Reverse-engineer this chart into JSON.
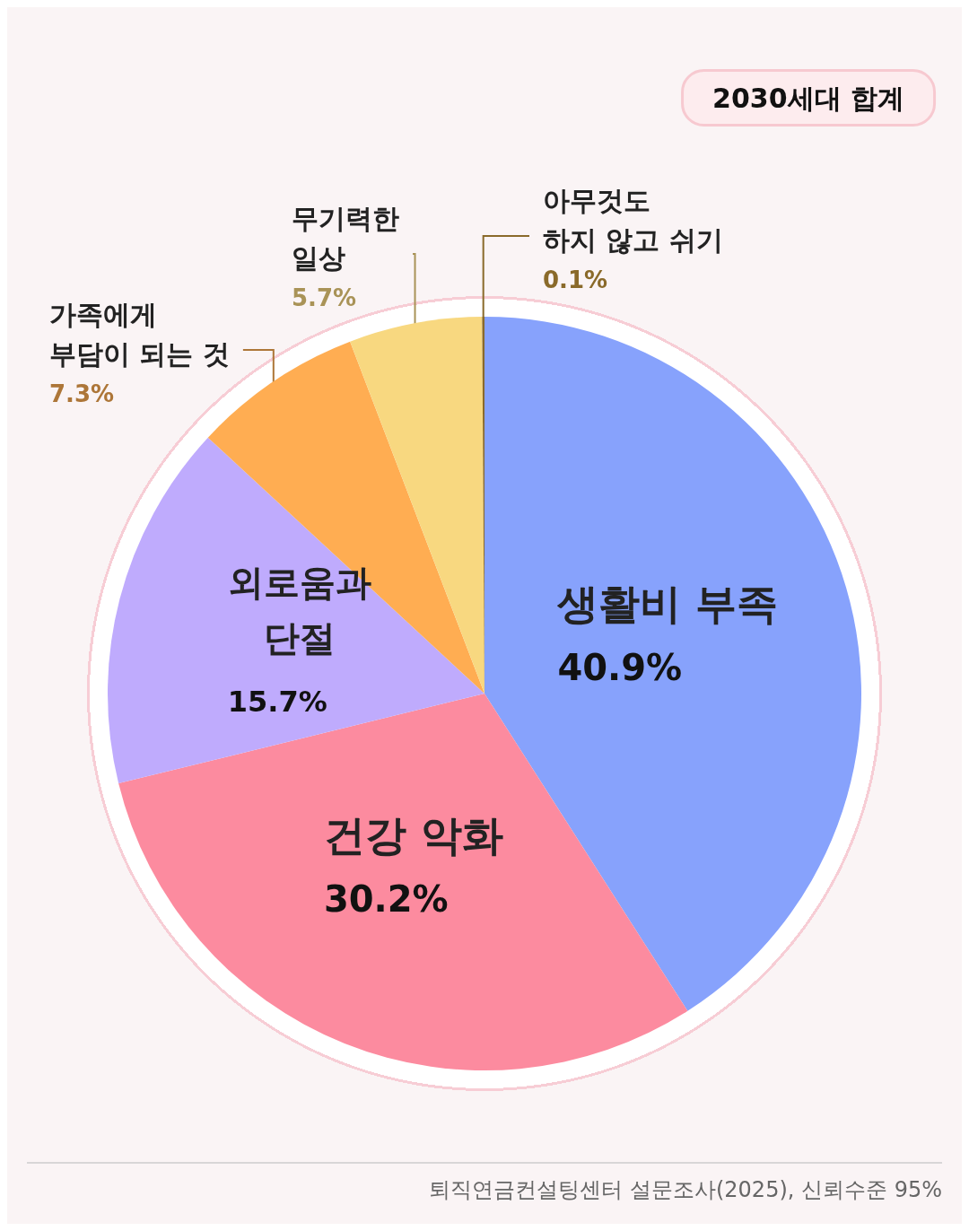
{
  "chart_data": {
    "type": "pie",
    "title": "2030세대 합계",
    "categories": [
      "생활비 부족",
      "건강 악화",
      "외로움과 단절",
      "가족에게 부담이 되는 것",
      "무기력한 일상",
      "아무것도 하지 않고 쉬기"
    ],
    "values": [
      40.9,
      30.2,
      15.7,
      7.3,
      5.7,
      0.1
    ],
    "value_labels": [
      "40.9%",
      "30.2%",
      "15.7%",
      "7.3%",
      "5.7%",
      "0.1%"
    ],
    "colors": [
      "#87a2fc",
      "#fc8b9f",
      "#bfabfd",
      "#ffad52",
      "#f8d880",
      "#8a6a2a"
    ],
    "legend": false,
    "annotations": [
      "퇴직연금컨설팅센터 설문조사(2025), 신뢰수준 95%"
    ]
  }
}
